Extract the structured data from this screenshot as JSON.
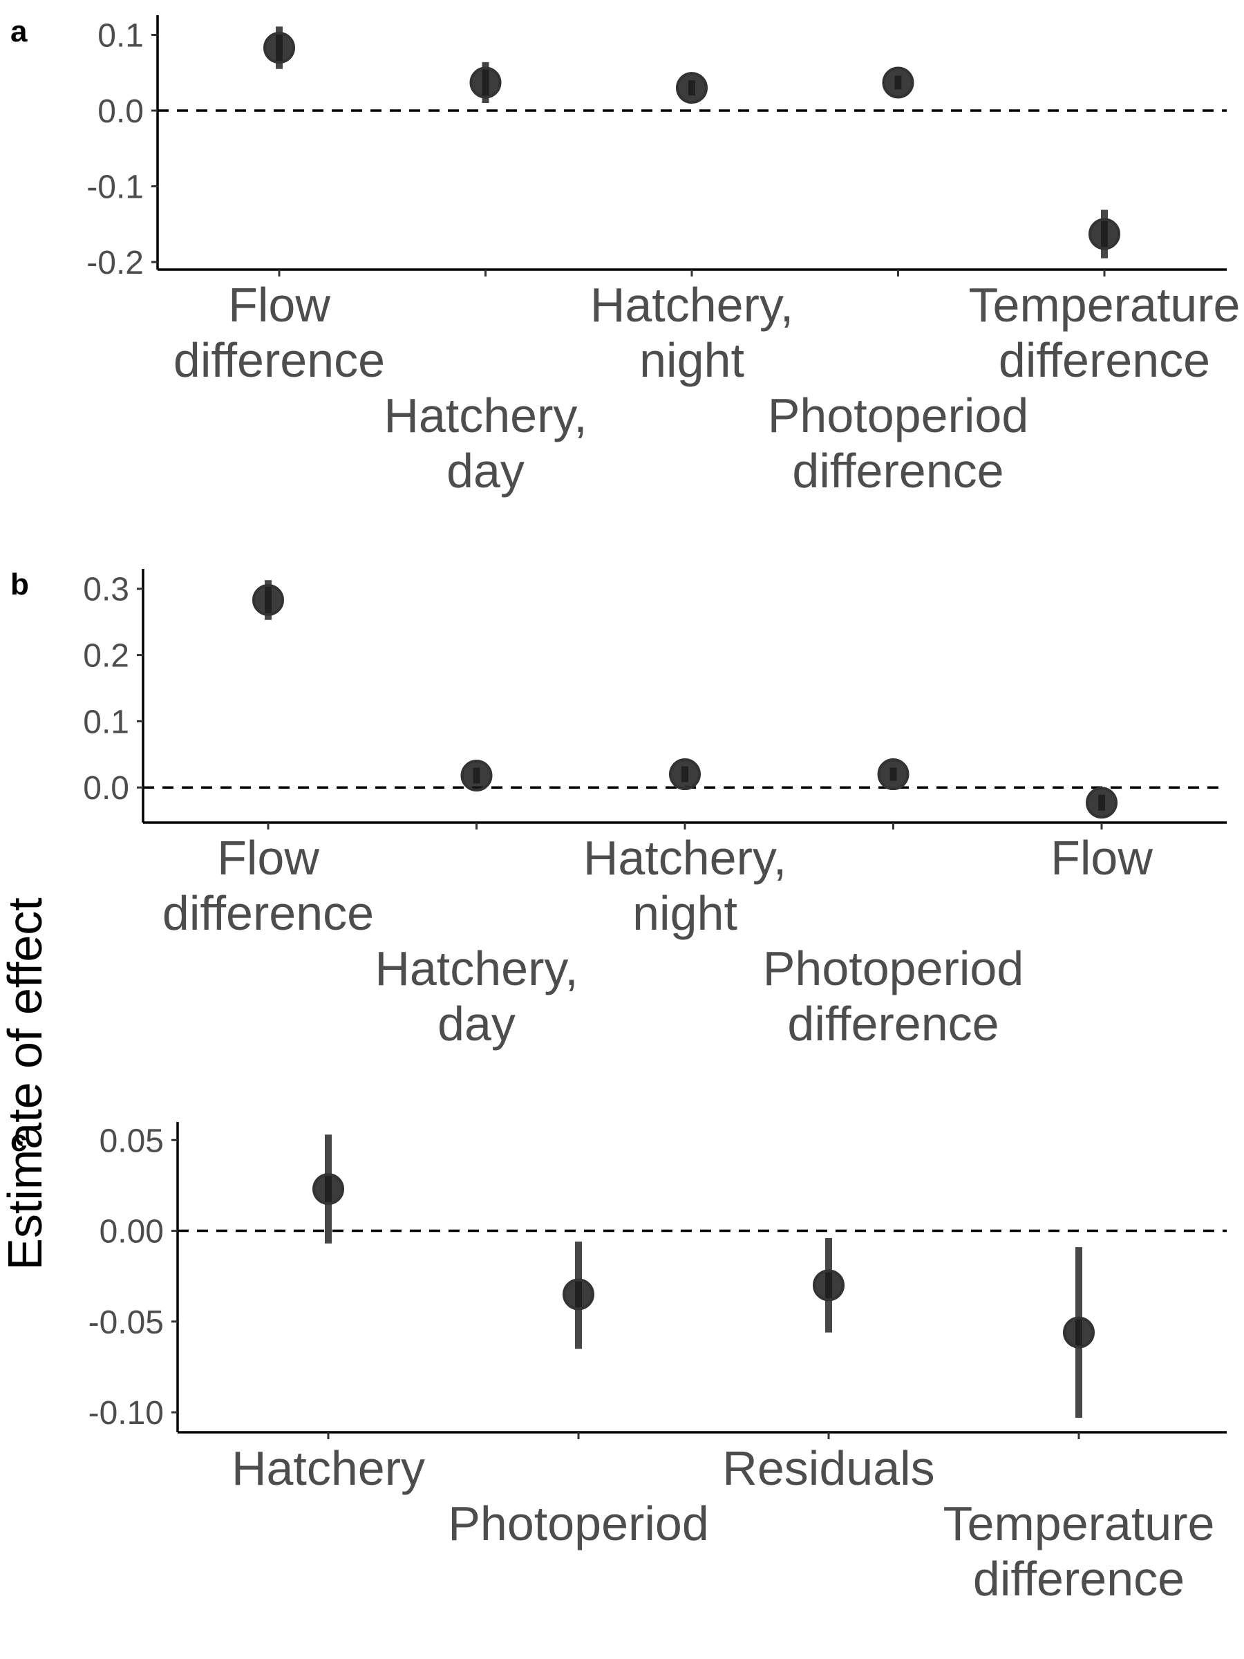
{
  "y_title": "Estimate of effect",
  "chart_data": [
    {
      "type": "scatter",
      "panel": "a",
      "categories": [
        [
          "Flow",
          "difference"
        ],
        [
          "Hatchery,",
          "day"
        ],
        [
          "Hatchery,",
          "night"
        ],
        [
          "Photoperiod",
          "difference"
        ],
        [
          "Temperature",
          "difference"
        ]
      ],
      "values": [
        0.083,
        0.037,
        0.03,
        0.037,
        -0.163
      ],
      "lower": [
        0.055,
        0.01,
        0.02,
        0.028,
        -0.195
      ],
      "upper": [
        0.111,
        0.064,
        0.04,
        0.046,
        -0.131
      ],
      "yticks": [
        "0.1",
        "0.0",
        "-0.1",
        "-0.2"
      ],
      "ytick_values": [
        0.1,
        0.0,
        -0.1,
        -0.2
      ],
      "ylim": [
        -0.21,
        0.126
      ],
      "zero_line": 0
    },
    {
      "type": "scatter",
      "panel": "b",
      "categories": [
        [
          "Flow",
          "difference"
        ],
        [
          "Hatchery,",
          "day"
        ],
        [
          "Hatchery,",
          "night"
        ],
        [
          "Photoperiod",
          "difference"
        ],
        [
          "Flow"
        ]
      ],
      "values": [
        0.283,
        0.018,
        0.02,
        0.02,
        -0.023
      ],
      "lower": [
        0.253,
        0.006,
        0.008,
        0.01,
        -0.035
      ],
      "upper": [
        0.313,
        0.03,
        0.032,
        0.03,
        -0.011
      ],
      "yticks": [
        "0.3",
        "0.2",
        "0.1",
        "0.0"
      ],
      "ytick_values": [
        0.3,
        0.2,
        0.1,
        0.0
      ],
      "ylim": [
        -0.053,
        0.33
      ],
      "zero_line": 0
    },
    {
      "type": "scatter",
      "panel": "c",
      "categories": [
        [
          "Hatchery"
        ],
        [
          "Photoperiod"
        ],
        [
          "Residuals"
        ],
        [
          "Temperature",
          "difference"
        ]
      ],
      "values": [
        0.023,
        -0.035,
        -0.03,
        -0.056
      ],
      "lower": [
        -0.007,
        -0.065,
        -0.056,
        -0.103
      ],
      "upper": [
        0.053,
        -0.006,
        -0.004,
        -0.009
      ],
      "yticks": [
        "0.05",
        "0.00",
        "-0.05",
        "-0.10"
      ],
      "ytick_values": [
        0.05,
        0.0,
        -0.05,
        -0.1
      ],
      "ylim": [
        -0.111,
        0.06
      ],
      "zero_line": 0
    }
  ]
}
